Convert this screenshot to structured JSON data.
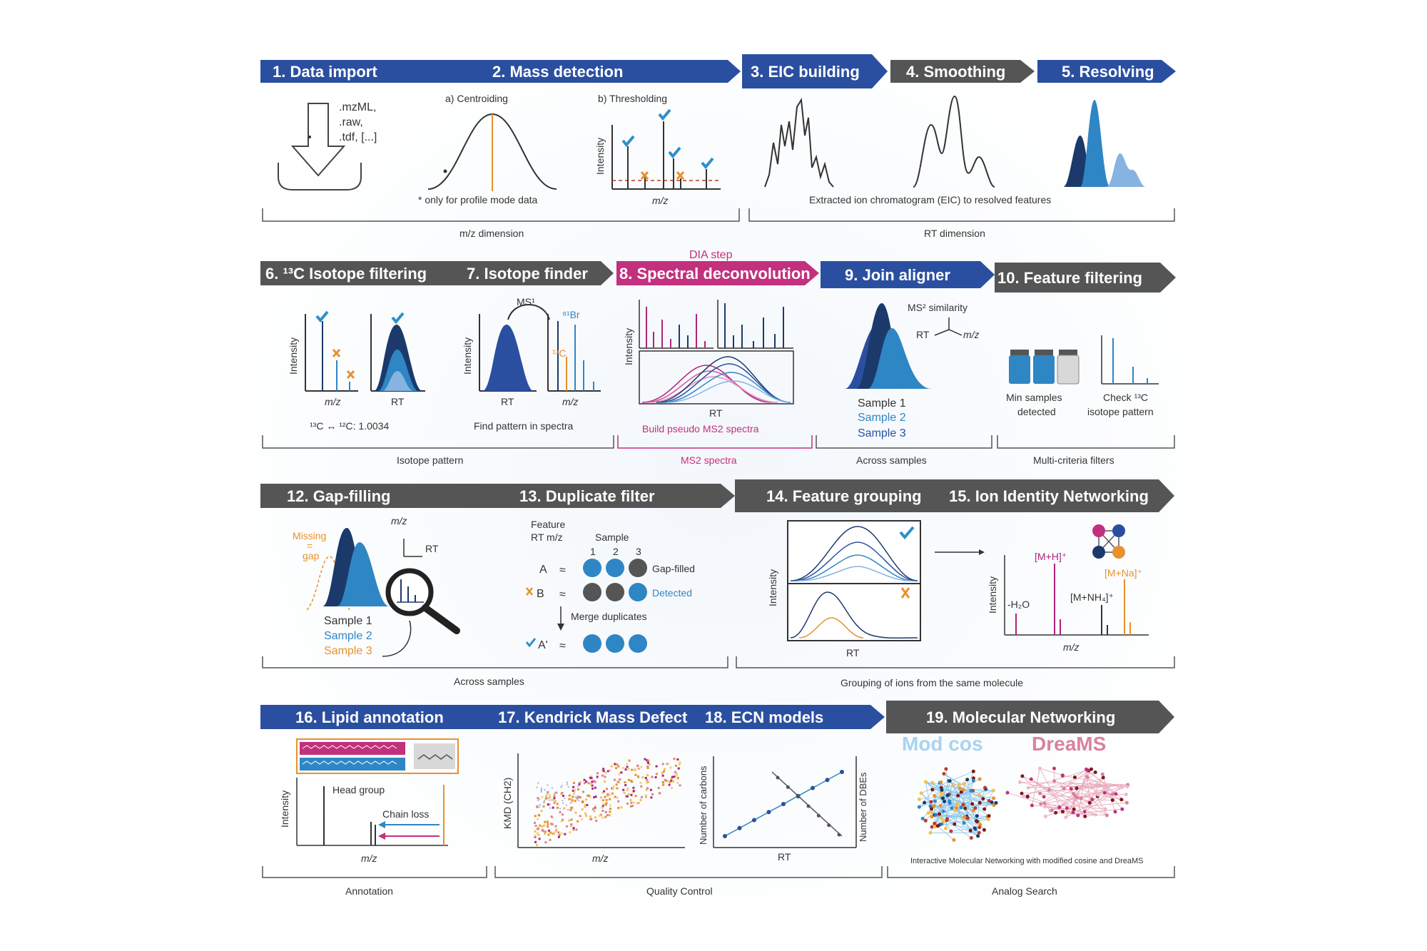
{
  "colors": {
    "blue_arrow": "#2b4fa0",
    "gray_arrow": "#555555",
    "magenta_arrow": "#c2307e",
    "dark_navy": "#1b3a6b",
    "mid_blue": "#2f86c4",
    "light_blue": "#86b3e0",
    "orange": "#e8912e",
    "magenta": "#b0247a",
    "teal_check": "#2e8fc9"
  },
  "row1": {
    "steps": [
      "1. Data import",
      "2. Mass detection",
      "3. EIC building",
      "4. Smoothing",
      "5. Resolving"
    ],
    "formats": [
      ".mzML,",
      ".raw,",
      ".tdf, [...]"
    ],
    "centroiding": "a) Centroiding",
    "thresholding": "b) Thresholding",
    "profile_note": "* only for profile mode data",
    "intensity": "Intensity",
    "mz": "m/z",
    "eic_note": "Extracted ion chromatogram (EIC) to resolved features",
    "bracket_mz": "m/z dimension",
    "bracket_rt": "RT dimension"
  },
  "row2": {
    "dia_step": "DIA step",
    "steps": [
      "6. ¹³C Isotope filtering",
      "7. Isotope finder",
      "8. Spectral deconvolution",
      "9. Join aligner",
      "10. Feature filtering"
    ],
    "intensity": "Intensity",
    "mz": "m/z",
    "rt": "RT",
    "iso_formula": "¹³C ↔ ¹²C: 1.0034",
    "ms1": "MS¹",
    "br81": "⁸¹Br",
    "c13": "¹³C",
    "find_pattern": "Find pattern in spectra",
    "ms2_similarity": "MS² similarity",
    "pseudo": "Build pseudo MS2 spectra",
    "samples": [
      "Sample 1",
      "Sample 2",
      "Sample 3"
    ],
    "min_samples": [
      "Min samples",
      "detected"
    ],
    "check_13c": [
      "Check ¹³C",
      "isotope pattern"
    ],
    "bracket_iso": "Isotope pattern",
    "bracket_ms2": "MS2 spectra",
    "bracket_across": "Across samples",
    "bracket_multi": "Multi-criteria filters"
  },
  "row3": {
    "steps": [
      "12. Gap-filling",
      "13. Duplicate filter",
      "14. Feature grouping",
      "15. Ion Identity Networking"
    ],
    "missing": [
      "Missing",
      "=",
      "gap"
    ],
    "mz": "m/z",
    "rt": "RT",
    "samples": [
      "Sample 1",
      "Sample 2",
      "Sample 3"
    ],
    "feature_hdr": [
      "Feature",
      "RT m/z"
    ],
    "sample_hdr": "Sample",
    "sample_nums": [
      "1",
      "2",
      "3"
    ],
    "row_a": "A",
    "row_b": "B",
    "row_a2": "A'",
    "approx": "≈",
    "gap_filled": "Gap-filled",
    "detected": "Detected",
    "merge": "Merge duplicates",
    "intensity": "Intensity",
    "mh": "[M+H]⁺",
    "mna": "[M+Na]⁺",
    "mnh4": "[M+NH₄]⁺",
    "h2o": "-H₂O",
    "bracket_across": "Across samples",
    "bracket_group": "Grouping of ions from the same molecule"
  },
  "row4": {
    "steps": [
      "16. Lipid annotation",
      "17. Kendrick Mass Defect",
      "18. ECN models",
      "19. Molecular Networking"
    ],
    "intensity": "Intensity",
    "head_group": "Head group",
    "chain_loss": "Chain loss",
    "mz": "m/z",
    "kmd": "KMD (CH2)",
    "carbons": "Number of carbons",
    "dbes": "Number of DBEs",
    "rt": "RT",
    "mod_cos": "Mod cos",
    "dreams": "DreaMS",
    "network_note": "Interactive Molecular Networking with modified cosine and DreaMS",
    "bracket_annot": "Annotation",
    "bracket_qc": "Quality Control",
    "bracket_analog": "Analog Search"
  }
}
